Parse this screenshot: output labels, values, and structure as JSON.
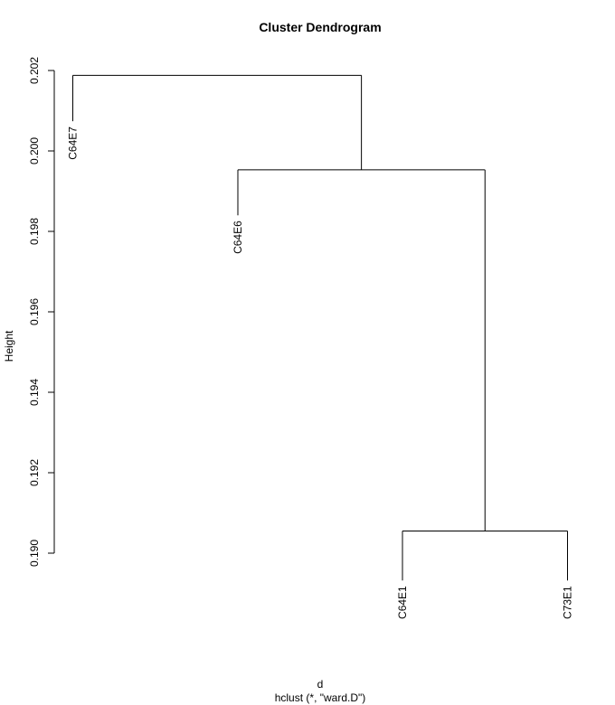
{
  "chart_data": {
    "type": "dendrogram",
    "title": "Cluster Dendrogram",
    "ylabel": "Height",
    "xlabel": "d",
    "sublabel": "hclust (*, \"ward.D\")",
    "ylim": [
      0.19,
      0.202
    ],
    "yticks": [
      {
        "value": 0.19,
        "label": "0.190"
      },
      {
        "value": 0.192,
        "label": "0.192"
      },
      {
        "value": 0.194,
        "label": "0.194"
      },
      {
        "value": 0.196,
        "label": "0.196"
      },
      {
        "value": 0.198,
        "label": "0.198"
      },
      {
        "value": 0.2,
        "label": "0.200"
      },
      {
        "value": 0.202,
        "label": "0.202"
      }
    ],
    "leaves": [
      "C64E7",
      "C64E6",
      "C64E1",
      "C73E1"
    ],
    "merges": [
      {
        "left": "C64E1",
        "right": "C73E1",
        "height": 0.19055
      },
      {
        "left": "C64E6",
        "right": "merge1",
        "height": 0.19953
      },
      {
        "left": "C64E7",
        "right": "merge2",
        "height": 0.20188
      }
    ]
  }
}
